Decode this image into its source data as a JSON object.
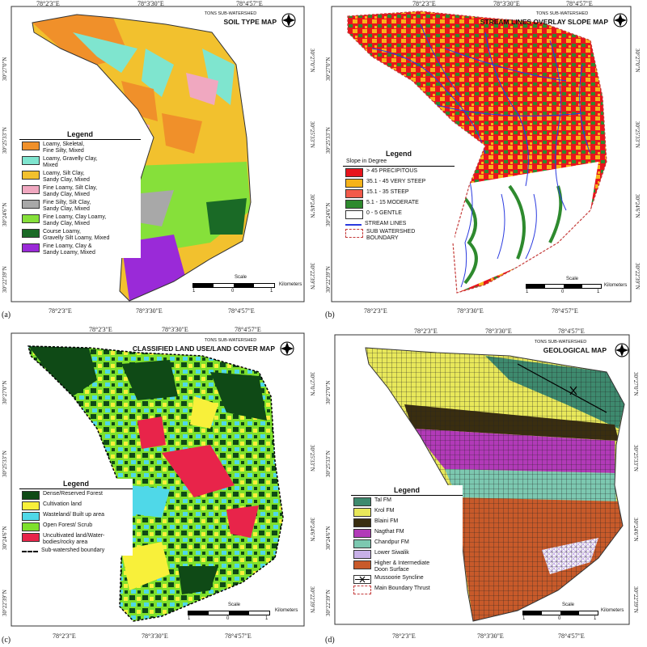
{
  "panels": {
    "a": {
      "tag": "(a)",
      "subtitle": "TONS SUB-WATERSHED",
      "title": "SOIL TYPE MAP",
      "top_labels": [
        "78°2'3\"E",
        "78°3'30\"E",
        "78°4'57\"E"
      ],
      "bottom_labels": [
        "78°2'3\"E",
        "78°3'30\"E",
        "78°4'57\"E"
      ],
      "left_labels": [
        "30°27'0\"N",
        "30°25'33\"N",
        "30°24'6\"N",
        "30°22'39\"N"
      ],
      "right_labels": [
        "30°27'0\"N",
        "30°25'33\"N",
        "30°24'6\"N",
        "30°22'39\"N"
      ],
      "legend_title": "Legend",
      "legend": [
        {
          "label": "Loamy, Skeletal,\nFine Silty, Mixed",
          "color": "#f0902a"
        },
        {
          "label": "Loamy, Gravelly Clay,\nMixed",
          "color": "#7fe5cf"
        },
        {
          "label": "Loamy, Silt Clay,\nSandy Clay, Mixed",
          "color": "#f2c12e"
        },
        {
          "label": "Fine Loamy, Silt Clay,\nSandy Clay, Mixed",
          "color": "#f0a8c0"
        },
        {
          "label": "Fine Silty, Silt Clay,\nSandy Clay, Mixed",
          "color": "#a8a8a8"
        },
        {
          "label": "Fine Loamy, Clay Loamy,\nSandy Clay, Mixed",
          "color": "#86e03a"
        },
        {
          "label": "Course Loamy,\nGravelly Silt Loamy, Mixed",
          "color": "#1a6a26"
        },
        {
          "label": "Fine Loamy, Clay &\nSandy Loamy, Mixed",
          "color": "#9a2ad8"
        }
      ],
      "scale_label": "Scale",
      "scale_unit": "Kilometers",
      "scale_ticks": [
        "1",
        "0",
        "1"
      ]
    },
    "b": {
      "tag": "(b)",
      "subtitle": "TONS SUB-WATERSHED",
      "title": "STREAM LINES OVERLAY SLOPE MAP",
      "top_labels": [
        "78°2'3\"E",
        "78°3'30\"E",
        "78°4'57\"E"
      ],
      "bottom_labels": [
        "78°2'3\"E",
        "78°3'30\"E",
        "78°4'57\"E"
      ],
      "left_labels": [
        "30°27'0\"N",
        "30°25'33\"N",
        "30°24'6\"N",
        "30°22'39\"N"
      ],
      "right_labels": [
        "30°27'0\"N",
        "30°25'33\"N",
        "30°24'6\"N",
        "30°22'39\"N"
      ],
      "legend_title": "Legend",
      "legend_subtitle": "Slope in Degree",
      "legend": [
        {
          "label": "> 45  PRECIPITOUS",
          "color": "#e8141c"
        },
        {
          "label": "35.1 - 45 VERY STEEP",
          "color": "#f6b31a"
        },
        {
          "label": "15.1 - 35 STEEP",
          "color": "#f25a4a"
        },
        {
          "label": "5.1 - 15  MODERATE",
          "color": "#2e8a2e"
        },
        {
          "label": "0 - 5  GENTLE",
          "color": "#ffffff"
        },
        {
          "label": "STREAM LINES",
          "color": "#2a3adf"
        },
        {
          "label": "SUB WATERSHED\nBOUNDARY",
          "color": "#c43a3a"
        }
      ],
      "scale_label": "Scale",
      "scale_unit": "Kilometers",
      "scale_ticks": [
        "1",
        "0",
        "1"
      ]
    },
    "c": {
      "tag": "(c)",
      "subtitle": "TONS SUB-WATERSHED",
      "title": "CLASSIFIED LAND USE/LAND COVER MAP",
      "top_labels": [
        "78°2'3\"E",
        "78°3'30\"E",
        "78°4'57\"E"
      ],
      "bottom_labels": [
        "78°2'3\"E",
        "78°3'30\"E",
        "78°4'57\"E"
      ],
      "left_labels": [
        "30°27'0\"N",
        "30°25'33\"N",
        "30°24'6\"N",
        "30°22'39\"N"
      ],
      "right_labels": [
        "30°27'0\"N",
        "30°25'33\"N",
        "30°24'6\"N",
        "30°22'39\"N"
      ],
      "legend_title": "Legend",
      "legend": [
        {
          "label": "Dense/Reserved Forest",
          "color": "#0f4a16"
        },
        {
          "label": "Cultivation land",
          "color": "#f8f03a"
        },
        {
          "label": "Wasteland/ Built up area",
          "color": "#4fd8e8"
        },
        {
          "label": "Open Forest/ Scrub",
          "color": "#7ee02c"
        },
        {
          "label": "Uncultivated land/Water-\nbodies/rocky area",
          "color": "#e8244a"
        },
        {
          "label": "Sub-watershed boundary",
          "color": "#000000"
        }
      ],
      "scale_label": "Scale",
      "scale_unit": "Kilometers",
      "scale_ticks": [
        "1",
        "0",
        "1"
      ]
    },
    "d": {
      "tag": "(d)",
      "subtitle": "TONS SUB-WATERSHED",
      "title": "GEOLOGICAL MAP",
      "top_labels": [
        "78°2'3\"E",
        "78°3'30\"E",
        "78°4'57\"E"
      ],
      "bottom_labels": [
        "78°2'3\"E",
        "78°3'30\"E",
        "78°4'57\"E"
      ],
      "left_labels": [
        "30°27'0\"N",
        "30°25'33\"N",
        "30°24'6\"N",
        "30°22'39\"N"
      ],
      "right_labels": [
        "30°27'0\"N",
        "30°25'33\"N",
        "30°24'6\"N",
        "30°22'39\"N"
      ],
      "legend_title": "Legend",
      "legend": [
        {
          "label": "Tal FM",
          "color": "#3e8a6e"
        },
        {
          "label": "Krol FM",
          "color": "#e8e85a"
        },
        {
          "label": "Blaini FM",
          "color": "#3a2e10"
        },
        {
          "label": "Nagthat FM",
          "color": "#b23ab8"
        },
        {
          "label": "Chandpur FM",
          "color": "#7cc8b0"
        },
        {
          "label": "Lower Siwalik",
          "color": "#c8b0e8"
        },
        {
          "label": "Higher & Intermediate\nDoon Surface",
          "color": "#c85a2a"
        },
        {
          "label": "Mussoorie Syncline",
          "color": "#ffffff"
        },
        {
          "label": "Main Boundary Thrust",
          "color": "#ffffff"
        }
      ],
      "scale_label": "Scale",
      "scale_unit": "Kilometers",
      "scale_ticks": [
        "1",
        "0",
        "1"
      ]
    }
  }
}
